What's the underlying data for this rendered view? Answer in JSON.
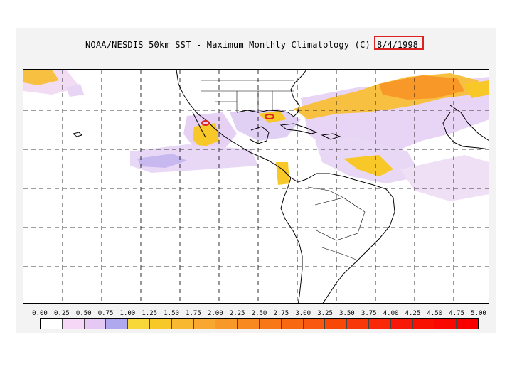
{
  "title": "NOAA/NESDIS 50km SST - Maximum Monthly Climatology (C)",
  "date": "8/4/1998",
  "colorbar": {
    "ticks": [
      "0.00",
      "0.25",
      "0.50",
      "0.75",
      "1.00",
      "1.25",
      "1.50",
      "1.75",
      "2.00",
      "2.25",
      "2.50",
      "2.75",
      "3.00",
      "3.25",
      "3.50",
      "3.75",
      "4.00",
      "4.25",
      "4.50",
      "4.75",
      "5.00"
    ],
    "colors": [
      "#ffffff",
      "#f6d8f6",
      "#e6c8f4",
      "#b0a8ee",
      "#f8d838",
      "#f8c828",
      "#f8b830",
      "#f8a830",
      "#f89828",
      "#f88820",
      "#f87818",
      "#f86810",
      "#f85810",
      "#f84808",
      "#f83808",
      "#f82808",
      "#f81808",
      "#f81000",
      "#f80800",
      "#f80000"
    ]
  },
  "legend_highlight_color": "#d22222"
}
